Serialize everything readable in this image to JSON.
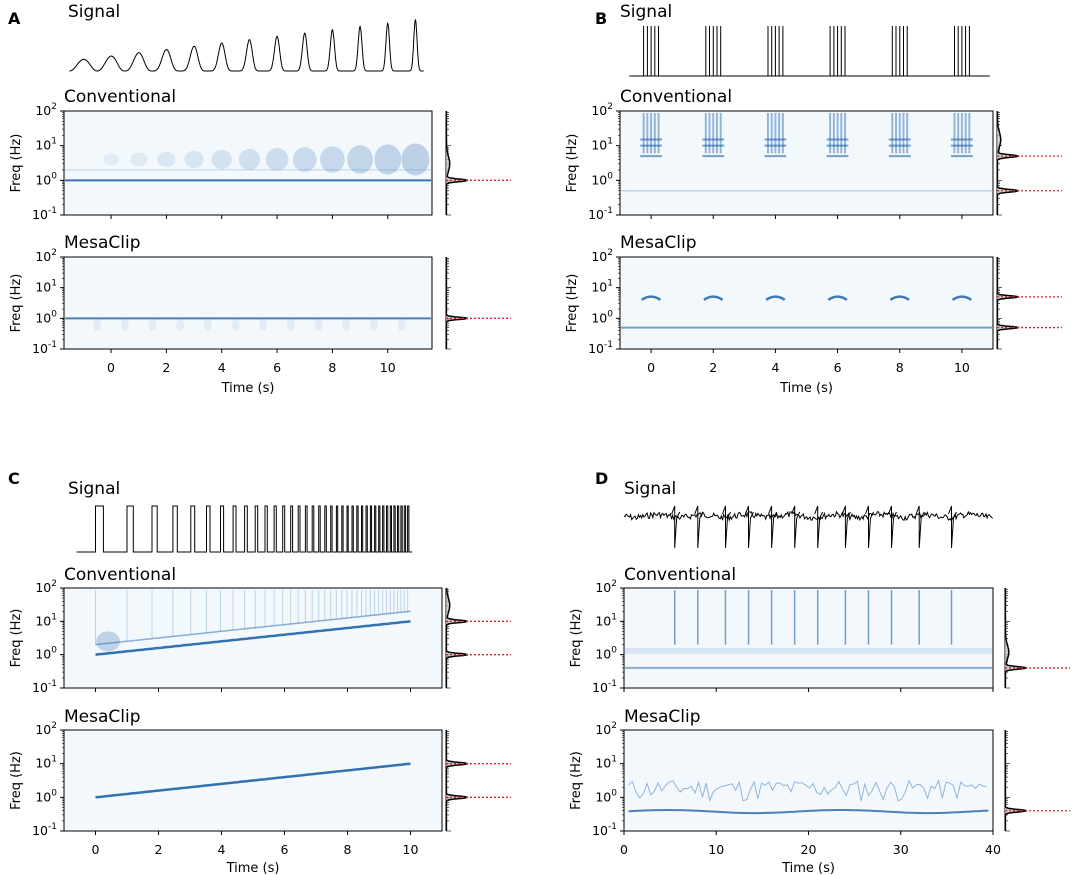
{
  "figure": {
    "sections": {
      "signal": "Signal",
      "conventional": "Conventional",
      "mesaclip": "MesaClip"
    },
    "ylabel": "Freq (Hz)",
    "xlabel": "Time (s)",
    "y_ticks": [
      "10-1",
      "100",
      "101",
      "102"
    ],
    "colors": {
      "spectrogram": "#1f62a8",
      "reference": "#d62728",
      "marginal_fill": "#bdbdbd"
    }
  },
  "chart_data": [
    {
      "type": "heatmap",
      "panel": "A",
      "title": "Signal",
      "subplots": [
        "Conventional",
        "MesaClip"
      ],
      "xlabel": "Time (s)",
      "ylabel": "Freq (Hz)",
      "x_ticks": [
        0,
        2,
        4,
        6,
        8,
        10
      ],
      "xlim": [
        -1.7,
        11.6
      ],
      "yscale": "log",
      "ylim": [
        0.1,
        100
      ],
      "signal": {
        "kind": "growing-oscillation",
        "frequency_hz": 1,
        "start_s": -1.5,
        "end_s": 11.3
      },
      "reference_frequencies_hz": [
        1
      ]
    },
    {
      "type": "heatmap",
      "panel": "B",
      "title": "Signal",
      "subplots": [
        "Conventional",
        "MesaClip"
      ],
      "xlabel": "Time (s)",
      "ylabel": "Freq (Hz)",
      "x_ticks": [
        0,
        2,
        4,
        6,
        8,
        10
      ],
      "xlim": [
        -1,
        11
      ],
      "yscale": "log",
      "ylim": [
        0.1,
        100
      ],
      "signal": {
        "kind": "spike-bursts",
        "burst_centers_s": [
          0,
          2,
          4,
          6,
          8,
          10
        ],
        "spikes_per_burst": 5
      },
      "reference_frequencies_hz": [
        5,
        0.5
      ]
    },
    {
      "type": "heatmap",
      "panel": "C",
      "title": "Signal",
      "subplots": [
        "Conventional",
        "MesaClip"
      ],
      "xlabel": "Time (s)",
      "ylabel": "Freq (Hz)",
      "x_ticks": [
        0,
        2,
        4,
        6,
        8,
        10
      ],
      "xlim": [
        -1,
        11
      ],
      "yscale": "log",
      "ylim": [
        0.1,
        100
      ],
      "signal": {
        "kind": "chirp-pulses",
        "start_s": 0,
        "end_s": 10,
        "freq_start_hz": 1,
        "freq_end_hz": 10
      },
      "reference_frequencies_hz": [
        10,
        1
      ]
    },
    {
      "type": "heatmap",
      "panel": "D",
      "title": "Signal",
      "subplots": [
        "Conventional",
        "MesaClip"
      ],
      "xlabel": "Time (s)",
      "ylabel": "Freq (Hz)",
      "x_ticks": [
        0,
        10,
        20,
        30,
        40
      ],
      "xlim": [
        0,
        40
      ],
      "yscale": "log",
      "ylim": [
        0.1,
        100
      ],
      "signal": {
        "kind": "noisy-spikes",
        "spike_times_s": [
          5.5,
          8,
          11,
          13.5,
          16,
          18.5,
          21,
          24,
          26.5,
          29,
          32,
          35.5
        ]
      },
      "reference_frequencies_hz": [
        0.4
      ]
    }
  ]
}
